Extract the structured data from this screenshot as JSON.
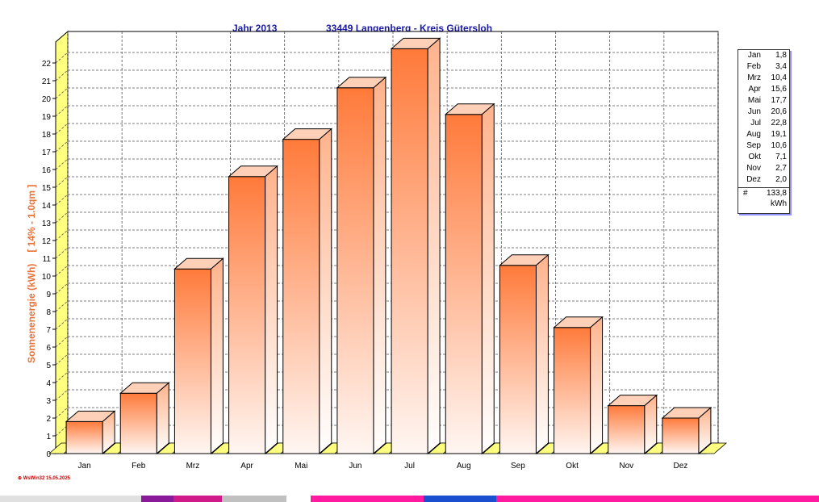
{
  "header": {
    "year_label": "Jahr  2013",
    "location_label": "33449 Langenberg - Kreis Gütersloh"
  },
  "axis": {
    "ylabel_main": "Sonnenenergie  (kWh)",
    "ylabel_sub": "[ 14% - 1.0qm ]"
  },
  "legend": {
    "total_symbol": "#",
    "total_value": "133,8",
    "unit": "kWh"
  },
  "footer": {
    "note": "⊕ WsWin32  15.05.2025"
  },
  "colors": {
    "bar_top": "#ff7a3a",
    "bar_bottom": "#fff6f2",
    "floor": "#ffff80",
    "title": "#1a1aa6",
    "ylabel": "#e8733a"
  },
  "chart_data": {
    "type": "bar",
    "title": "Jahr  2013            33449 Langenberg - Kreis Gütersloh",
    "ylabel": "Sonnenenergie  (kWh)    [ 14% - 1.0qm ]",
    "xlabel": "",
    "ylim": [
      0,
      23
    ],
    "yticks": [
      0,
      1,
      2,
      3,
      4,
      5,
      6,
      7,
      8,
      9,
      10,
      11,
      12,
      13,
      14,
      15,
      16,
      17,
      18,
      19,
      20,
      21,
      22
    ],
    "grid": true,
    "legend_position": "right",
    "categories": [
      "Jan",
      "Feb",
      "Mrz",
      "Apr",
      "Mai",
      "Jun",
      "Jul",
      "Aug",
      "Sep",
      "Okt",
      "Nov",
      "Dez"
    ],
    "values": [
      1.8,
      3.4,
      10.4,
      15.6,
      17.7,
      20.6,
      22.8,
      19.1,
      10.6,
      7.1,
      2.7,
      2.0
    ],
    "legend_values": [
      "1,8",
      "3,4",
      "10,4",
      "15,6",
      "17,7",
      "20,6",
      "22,8",
      "19,1",
      "10,6",
      "7,1",
      "2,7",
      "2,0"
    ]
  }
}
